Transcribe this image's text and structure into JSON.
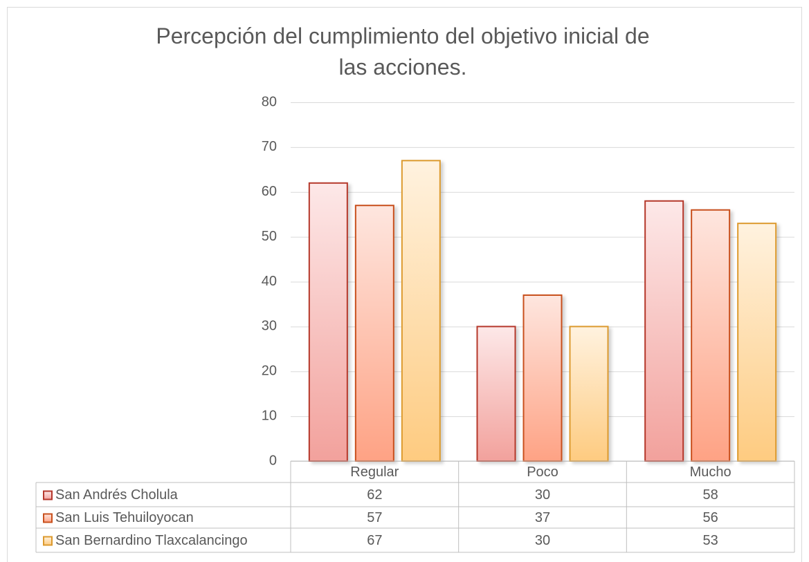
{
  "chart_data": {
    "type": "bar",
    "title": "Percepción del cumplimiento del objetivo inicial de las acciones.",
    "categories": [
      "Regular",
      "Poco",
      "Mucho"
    ],
    "series": [
      {
        "name": "San Andrés Cholula",
        "color": "#b5372c",
        "gradient": [
          "#fde8e8",
          "#f2a19c"
        ],
        "values": [
          62,
          30,
          58
        ]
      },
      {
        "name": "San Luis Tehuiloyocan",
        "color": "#c8501d",
        "gradient": [
          "#fee6df",
          "#fea284"
        ],
        "values": [
          57,
          37,
          56
        ]
      },
      {
        "name": "San Bernardino Tlaxcalancingo",
        "color": "#dc9a2e",
        "gradient": [
          "#fff2df",
          "#fecb80"
        ],
        "values": [
          67,
          30,
          53
        ]
      }
    ],
    "ylim": [
      0,
      80
    ],
    "yticks": [
      0,
      10,
      20,
      30,
      40,
      50,
      60,
      70,
      80
    ],
    "grid": true,
    "data_table": true
  }
}
